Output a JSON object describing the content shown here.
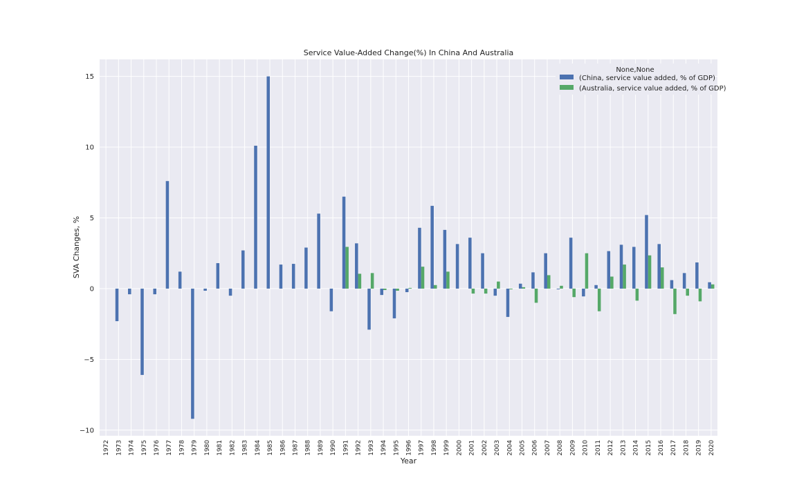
{
  "chart_data": {
    "type": "bar",
    "title": "Service Value-Added Change(%) In China And Australia",
    "xlabel": "Year",
    "ylabel": "SVA Changes, %",
    "ylim": [
      -10.4,
      16.2
    ],
    "yticks": [
      -10,
      -5,
      0,
      5,
      10,
      15
    ],
    "ytick_labels": [
      "−10",
      "−5",
      "0",
      "5",
      "10",
      "15"
    ],
    "grid": true,
    "legend": {
      "title": "None,None",
      "placement": "top-right"
    },
    "categories": [
      "1972",
      "1973",
      "1974",
      "1975",
      "1976",
      "1977",
      "1978",
      "1979",
      "1980",
      "1981",
      "1982",
      "1983",
      "1984",
      "1985",
      "1986",
      "1987",
      "1988",
      "1989",
      "1990",
      "1991",
      "1992",
      "1993",
      "1994",
      "1995",
      "1996",
      "1997",
      "1998",
      "1999",
      "2000",
      "2001",
      "2002",
      "2003",
      "2004",
      "2005",
      "2006",
      "2007",
      "2008",
      "2009",
      "2010",
      "2011",
      "2012",
      "2013",
      "2014",
      "2015",
      "2016",
      "2017",
      "2018",
      "2019",
      "2020"
    ],
    "series": [
      {
        "name": "(China, service value added, % of GDP)",
        "color": "#4c72b0",
        "values": [
          null,
          -2.3,
          -0.4,
          -6.1,
          -0.4,
          7.6,
          1.2,
          -9.2,
          -0.15,
          1.8,
          -0.5,
          2.7,
          10.1,
          15.0,
          1.7,
          1.75,
          2.9,
          5.3,
          -1.6,
          6.5,
          3.2,
          -2.9,
          -0.45,
          -2.1,
          -0.25,
          4.3,
          5.85,
          4.15,
          3.15,
          3.6,
          2.5,
          -0.5,
          -2.0,
          0.35,
          1.15,
          2.5,
          -0.05,
          3.6,
          -0.55,
          0.25,
          2.65,
          3.1,
          2.95,
          5.2,
          3.15,
          0.6,
          1.1,
          1.85,
          0.45
        ]
      },
      {
        "name": "(Australia, service value added, % of GDP)",
        "color": "#55a868",
        "values": [
          null,
          null,
          null,
          null,
          null,
          null,
          null,
          null,
          null,
          null,
          null,
          null,
          null,
          null,
          null,
          null,
          null,
          null,
          null,
          2.95,
          1.05,
          1.1,
          -0.1,
          -0.15,
          0.05,
          1.55,
          0.25,
          1.2,
          null,
          -0.35,
          -0.35,
          0.5,
          -0.05,
          0.1,
          -1.0,
          0.95,
          0.2,
          -0.6,
          2.5,
          -1.6,
          0.85,
          1.7,
          -0.85,
          2.35,
          1.5,
          -1.8,
          -0.5,
          -0.9,
          0.3
        ]
      }
    ]
  }
}
